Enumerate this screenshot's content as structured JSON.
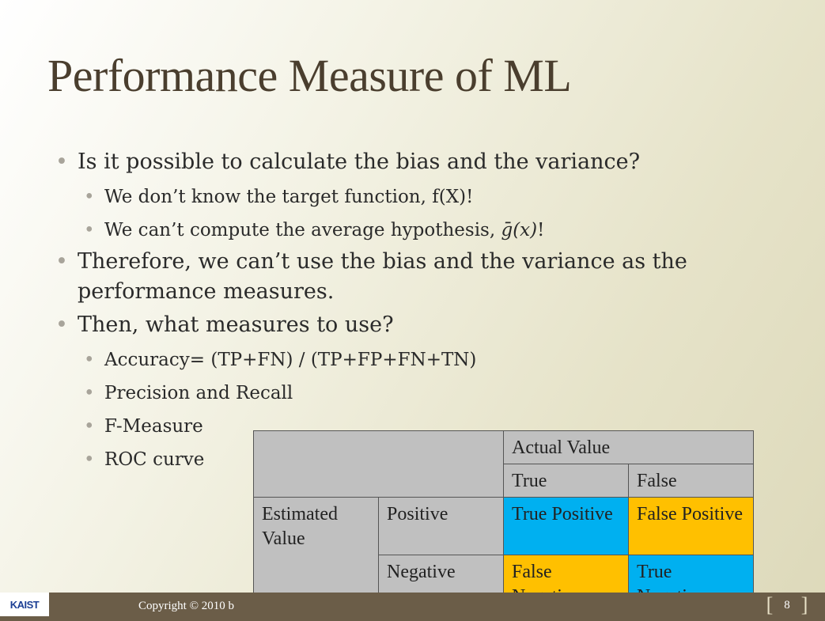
{
  "slide": {
    "title": "Performance Measure of ML",
    "bullets": {
      "q1": "Is it possible to calculate the bias and the variance?",
      "q1_sub1": "We don’t know the target function, f(X)!",
      "q1_sub2_prefix": "We can’t compute the average hypothesis, ",
      "q1_sub2_math": "ḡ(x)",
      "q1_sub2_suffix": "!",
      "q2": "Therefore, we can’t use the bias and the variance as the performance measures.",
      "q3": "Then, what measures to use?",
      "q3_sub1": "Accuracy= (TP+FN) / (TP+FP+FN+TN)",
      "q3_sub2": "Precision and Recall",
      "q3_sub3": "F-Measure",
      "q3_sub4": "ROC curve"
    },
    "matrix": {
      "actual_value": "Actual Value",
      "true_label": "True",
      "false_label": "False",
      "estimated_value": "Estimated Value",
      "positive": "Positive",
      "negative": "Negative",
      "tp": "True Positive",
      "fp": "False Positive",
      "fn": "False Negative",
      "tn": "True Negative"
    },
    "footer": {
      "logo": "KAIST",
      "copyright": "Copyright © 2010 b",
      "page_number": "8"
    },
    "colors": {
      "title": "#4a3e2e",
      "footer_bar": "#6b5d48",
      "blue_cell": "#00b0f0",
      "gold_cell": "#ffc000"
    }
  }
}
